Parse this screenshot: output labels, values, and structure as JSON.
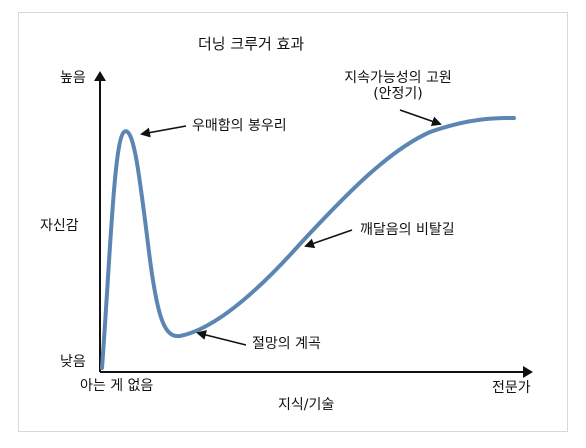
{
  "title": "더닝 크루거 효과",
  "y_axis": {
    "label": "자신감",
    "high": "높음",
    "low": "낮음"
  },
  "x_axis": {
    "label": "지식/기술",
    "start": "아는 게 없음",
    "end": "전문가"
  },
  "annotations": {
    "peak": "우매함의 봉우리",
    "valley": "절망의 계곡",
    "slope": "깨달음의 비탈길",
    "plateau_line1": "지속가능성의 고원",
    "plateau_line2": "(안정기)"
  },
  "colors": {
    "curve": "#5b86b3",
    "axis": "#111111",
    "arrow": "#111111"
  }
}
